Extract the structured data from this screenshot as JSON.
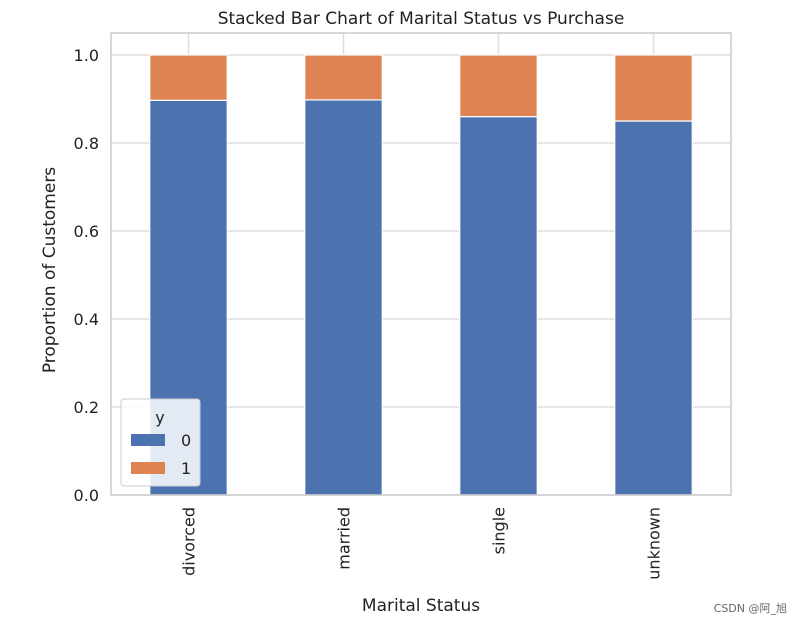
{
  "chart_data": {
    "type": "bar",
    "stacked": true,
    "title": "Stacked Bar Chart of Marital Status vs Purchase",
    "xlabel": "Marital Status",
    "ylabel": "Proportion of Customers",
    "categories": [
      "divorced",
      "married",
      "single",
      "unknown"
    ],
    "series": [
      {
        "name": "0",
        "values": [
          0.897,
          0.898,
          0.86,
          0.85
        ],
        "color": "#4c72b0"
      },
      {
        "name": "1",
        "values": [
          0.103,
          0.102,
          0.14,
          0.15
        ],
        "color": "#dd8452"
      }
    ],
    "ylim": [
      0,
      1.05
    ],
    "yticks": [
      "0.0",
      "0.2",
      "0.4",
      "0.6",
      "0.8",
      "1.0"
    ],
    "grid": true,
    "legend": {
      "title": "y",
      "placement": "lower-left",
      "entries": [
        "0",
        "1"
      ]
    }
  },
  "watermark": "CSDN @阿_旭"
}
